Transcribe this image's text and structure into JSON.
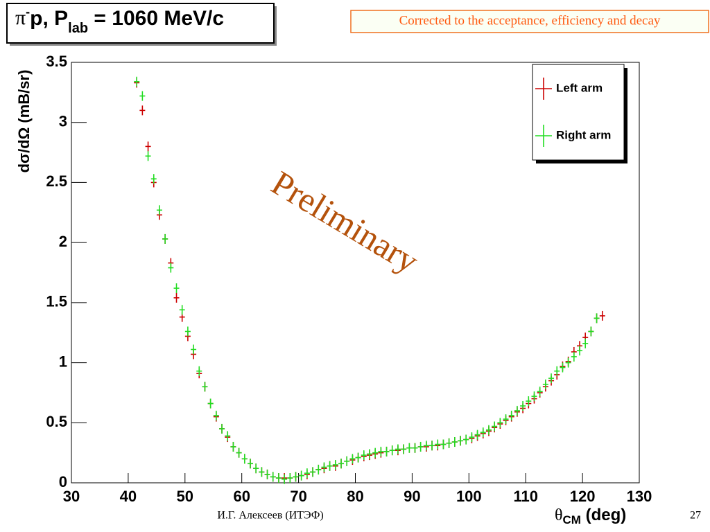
{
  "chart_data": {
    "type": "scatter",
    "title_parts": [
      "π",
      "-",
      "p, P",
      "lab",
      " = 1060 MeV/c"
    ],
    "annotation": "Corrected to the acceptance, efficiency and decay",
    "watermark": "Preliminary",
    "y_label": "dσ/dΩ (mB/sr)",
    "x_label_parts": [
      "θ",
      "CM",
      " (deg)"
    ],
    "footer": "И.Г. Алексеев (ИТЭФ)",
    "page_number": "27",
    "xlim": [
      30,
      130
    ],
    "xticks": [
      30,
      40,
      50,
      60,
      70,
      80,
      90,
      100,
      110,
      120,
      130
    ],
    "ylim": [
      0,
      3.5
    ],
    "yticks": [
      0,
      0.5,
      1,
      1.5,
      2,
      2.5,
      3,
      3.5
    ],
    "legend": "top-right",
    "x": [
      41.5,
      42.5,
      43.5,
      44.5,
      45.5,
      46.5,
      47.5,
      48.5,
      49.5,
      50.5,
      51.5,
      52.5,
      53.5,
      54.5,
      55.5,
      56.5,
      57.5,
      58.5,
      59.5,
      60.5,
      61.5,
      62.5,
      63.5,
      64.5,
      65.5,
      66.5,
      67.5,
      68.5,
      69.5,
      70.5,
      71.5,
      72.5,
      73.5,
      74.5,
      75.5,
      76.5,
      77.5,
      78.5,
      79.5,
      80.5,
      81.5,
      82.5,
      83.5,
      84.5,
      85.5,
      86.5,
      87.5,
      88.5,
      89.5,
      90.5,
      91.5,
      92.5,
      93.5,
      94.5,
      95.5,
      96.5,
      97.5,
      98.5,
      99.5,
      100.5,
      101.5,
      102.5,
      103.5,
      104.5,
      105.5,
      106.5,
      107.5,
      108.5,
      109.5,
      110.5,
      111.5,
      112.5,
      113.5,
      114.5,
      115.5,
      116.5,
      117.5,
      118.5,
      119.5,
      120.5,
      121.5,
      122.5,
      123.5
    ],
    "series": [
      {
        "name": "Left arm",
        "color": "#cc0000",
        "values": [
          3.33,
          3.1,
          2.8,
          2.5,
          2.23,
          2.03,
          1.83,
          1.54,
          1.38,
          1.22,
          1.07,
          0.91,
          0.8,
          0.66,
          0.55,
          0.45,
          0.38,
          0.3,
          0.25,
          0.2,
          0.16,
          0.12,
          0.09,
          0.07,
          0.05,
          0.04,
          0.04,
          0.04,
          0.05,
          0.06,
          0.07,
          0.09,
          0.11,
          0.12,
          0.14,
          0.14,
          0.16,
          0.18,
          0.19,
          0.21,
          0.22,
          0.23,
          0.24,
          0.25,
          0.26,
          0.27,
          0.27,
          0.28,
          0.29,
          0.29,
          0.3,
          0.3,
          0.31,
          0.31,
          0.32,
          0.33,
          0.34,
          0.35,
          0.36,
          0.37,
          0.39,
          0.41,
          0.43,
          0.46,
          0.49,
          0.52,
          0.55,
          0.59,
          0.62,
          0.66,
          0.7,
          0.75,
          0.8,
          0.85,
          0.9,
          0.97,
          1.01,
          1.09,
          1.14,
          1.21,
          1.26,
          1.37,
          1.39
        ]
      },
      {
        "name": "Right arm",
        "color": "#22dd22",
        "values": [
          3.34,
          3.22,
          2.72,
          2.53,
          2.27,
          2.03,
          1.79,
          1.62,
          1.44,
          1.26,
          1.11,
          0.93,
          0.8,
          0.66,
          0.56,
          0.45,
          0.39,
          0.3,
          0.25,
          0.2,
          0.16,
          0.12,
          0.09,
          0.07,
          0.05,
          0.04,
          0.03,
          0.04,
          0.05,
          0.06,
          0.08,
          0.09,
          0.11,
          0.13,
          0.14,
          0.15,
          0.16,
          0.18,
          0.2,
          0.21,
          0.23,
          0.24,
          0.25,
          0.26,
          0.26,
          0.27,
          0.28,
          0.28,
          0.29,
          0.29,
          0.3,
          0.31,
          0.31,
          0.32,
          0.32,
          0.33,
          0.34,
          0.35,
          0.36,
          0.38,
          0.4,
          0.42,
          0.44,
          0.47,
          0.5,
          0.53,
          0.56,
          0.6,
          0.64,
          0.68,
          0.72,
          0.76,
          0.82,
          0.87,
          0.93,
          0.96,
          1.0,
          1.05,
          1.1,
          1.16,
          1.26,
          1.37,
          null
        ]
      }
    ]
  }
}
